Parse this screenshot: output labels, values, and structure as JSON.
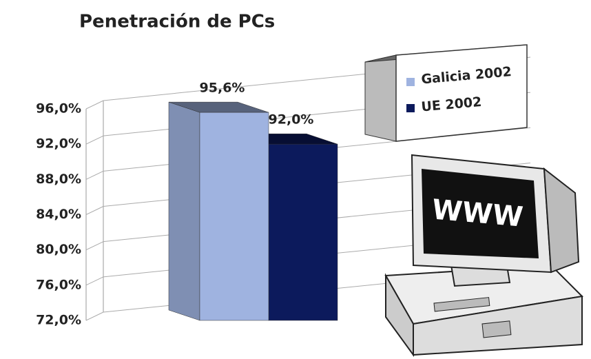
{
  "chart_data": {
    "type": "bar",
    "title": "Penetración de PCs",
    "categories": [
      null
    ],
    "series": [
      {
        "name": "Galicia 2002",
        "color": "#9fb3e0",
        "values": [
          95.6
        ],
        "value_labels": [
          "95,6%"
        ]
      },
      {
        "name": "UE 2002",
        "color": "#0c1a5c",
        "values": [
          92.0
        ],
        "value_labels": [
          "92,0%"
        ]
      }
    ],
    "ylim": [
      72,
      96
    ],
    "yticks": [
      {
        "value": 72,
        "label": "72,0%"
      },
      {
        "value": 76,
        "label": "76,0%"
      },
      {
        "value": 80,
        "label": "80,0%"
      },
      {
        "value": 84,
        "label": "84,0%"
      },
      {
        "value": 88,
        "label": "88,0%"
      },
      {
        "value": 92,
        "label": "92,0%"
      },
      {
        "value": 96,
        "label": "96,0%"
      }
    ],
    "grid": true,
    "legend": "upper right"
  }
}
